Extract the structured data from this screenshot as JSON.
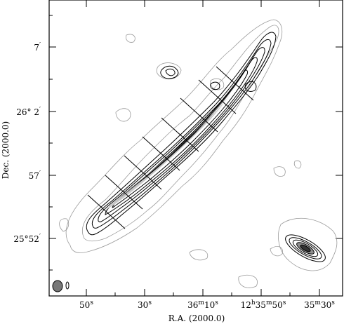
{
  "figure": {
    "x_axis_label": "R.A. (2000.0)",
    "y_axis_label": "Dec. (2000.0)",
    "x_ticks": [
      {
        "main": "50",
        "sup": "s"
      },
      {
        "main": "30",
        "sup": "s"
      },
      {
        "main": "36",
        "sup": "m",
        "tail": "10",
        "sup2": "s"
      },
      {
        "main": "12",
        "sup": "h",
        "tail": "35",
        "sup2": "m",
        "tail2": "50",
        "sup3": "s"
      },
      {
        "main": "35",
        "sup": "m",
        "tail": "30",
        "sup2": "s"
      }
    ],
    "y_ticks": [
      {
        "main": "7",
        "sup": "′"
      },
      {
        "main": "26° 2",
        "sup": "′"
      },
      {
        "main": "57",
        "sup": "′"
      },
      {
        "main": "25°52",
        "sup": "′"
      }
    ],
    "colors": {
      "frame": "#000000",
      "outer_contour": "#8a8a8a",
      "inner_contour": "#000000",
      "core": "#111111"
    }
  }
}
